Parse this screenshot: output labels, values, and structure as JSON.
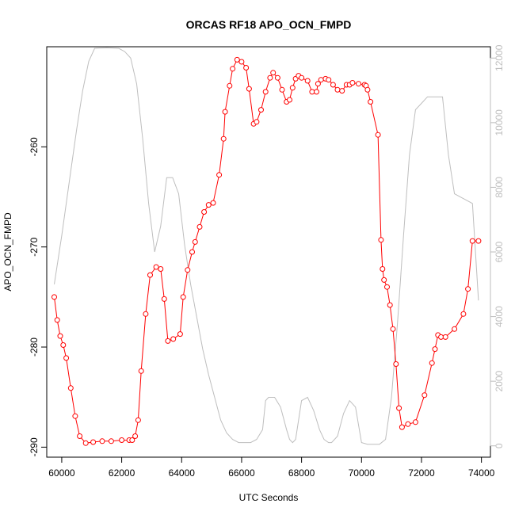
{
  "chart_data": {
    "type": "line",
    "title": "ORCAS RF18 APO_OCN_FMPD",
    "xlabel": "UTC Seconds",
    "ylabel": "APO_OCN_FMPD",
    "xlim": [
      59500,
      74300
    ],
    "ylim": [
      -291,
      -250
    ],
    "y2lim": [
      -350,
      12350
    ],
    "x_ticks": [
      60000,
      62000,
      64000,
      66000,
      68000,
      70000,
      72000,
      74000
    ],
    "x_tick_labels": [
      "60000",
      "62000",
      "64000",
      "66000",
      "68000",
      "70000",
      "72000",
      "74000"
    ],
    "y_ticks": [
      -290,
      -280,
      -270,
      -260
    ],
    "y_tick_labels": [
      "-290",
      "-280",
      "-270",
      "-260"
    ],
    "y2_ticks": [
      0,
      2000,
      4000,
      6000,
      8000,
      10000,
      12000
    ],
    "y2_tick_labels": [
      "0",
      "2000",
      "4000",
      "6000",
      "8000",
      "10000",
      "12000"
    ],
    "grid": false,
    "colors": {
      "primary": "#ff0000",
      "secondary": "#bebebe",
      "axes": "#000000"
    },
    "series": [
      {
        "axis": "left",
        "style": "line-with-open-circles",
        "color": "#ff0000",
        "x": [
          59750,
          59850,
          59950,
          60050,
          60150,
          60300,
          60450,
          60600,
          60800,
          61050,
          61350,
          61650,
          62000,
          62250,
          62350,
          62450,
          62550,
          62650,
          62800,
          62950,
          63150,
          63300,
          63420,
          63540,
          63720,
          63950,
          64050,
          64200,
          64350,
          64450,
          64600,
          64750,
          64900,
          65050,
          65250,
          65400,
          65450,
          65600,
          65700,
          65850,
          66000,
          66150,
          66250,
          66400,
          66500,
          66650,
          66800,
          66950,
          67050,
          67200,
          67350,
          67500,
          67600,
          67700,
          67800,
          67900,
          68000,
          68200,
          68350,
          68500,
          68550,
          68650,
          68800,
          68900,
          69050,
          69200,
          69350,
          69500,
          69600,
          69700,
          69900,
          70100,
          70150,
          70200,
          70300,
          70550,
          70650,
          70700,
          70750,
          70850,
          70950,
          71050,
          71150,
          71250,
          71350,
          71550,
          71800,
          72100,
          72350,
          72450,
          72550,
          72650,
          72800,
          73100,
          73400,
          73550,
          73700,
          73900
        ],
        "y": [
          -275,
          -277.3,
          -278.9,
          -279.8,
          -281.1,
          -284.1,
          -286.9,
          -288.9,
          -289.6,
          -289.5,
          -289.4,
          -289.4,
          -289.3,
          -289.3,
          -289.3,
          -288.9,
          -287.3,
          -282.4,
          -276.7,
          -272.8,
          -272,
          -272.2,
          -275.2,
          -279.4,
          -279.2,
          -278.7,
          -275,
          -272.3,
          -270.5,
          -269.5,
          -268,
          -266.5,
          -265.8,
          -265.6,
          -262.8,
          -259.2,
          -256.5,
          -253.9,
          -252.2,
          -251.3,
          -251.5,
          -252.1,
          -254.2,
          -257.7,
          -257.5,
          -256.3,
          -254.5,
          -253.1,
          -252.6,
          -253.1,
          -254.3,
          -255.5,
          -255.3,
          -254.1,
          -253.2,
          -252.9,
          -253.1,
          -253.4,
          -254.5,
          -254.5,
          -253.7,
          -253.3,
          -253.2,
          -253.3,
          -253.8,
          -254.3,
          -254.4,
          -253.8,
          -253.8,
          -253.6,
          -253.7,
          -253.8,
          -253.9,
          -254.3,
          -255.5,
          -258.8,
          -269.3,
          -272.2,
          -273.3,
          -274,
          -275.8,
          -278.2,
          -281.7,
          -286.1,
          -288,
          -287.7,
          -287.5,
          -284.8,
          -281.6,
          -280.2,
          -278.8,
          -279,
          -279,
          -278.2,
          -276.7,
          -274.2,
          -269.4,
          -269.4
        ]
      },
      {
        "axis": "right",
        "style": "line",
        "color": "#bebebe",
        "x": [
          59750,
          60000,
          60300,
          60500,
          60700,
          60900,
          61100,
          61500,
          61900,
          62100,
          62300,
          62500,
          62700,
          62900,
          63100,
          63300,
          63500,
          63700,
          63900,
          64100,
          64300,
          64500,
          64700,
          64900,
          65100,
          65300,
          65500,
          65700,
          65900,
          66100,
          66300,
          66500,
          66700,
          66800,
          66900,
          67100,
          67300,
          67500,
          67600,
          67700,
          67800,
          68000,
          68200,
          68400,
          68600,
          68750,
          68900,
          69000,
          69200,
          69400,
          69600,
          69800,
          70000,
          70200,
          70400,
          70600,
          70800,
          71000,
          71200,
          71400,
          71600,
          71800,
          72000,
          72200,
          72300,
          72500,
          72700,
          72900,
          73100,
          73300,
          73500,
          73700,
          73900
        ],
        "y": [
          5000,
          6500,
          8500,
          9800,
          11000,
          11900,
          12300,
          12320,
          12300,
          12200,
          12000,
          11200,
          9500,
          7500,
          6000,
          6800,
          8300,
          8300,
          7800,
          6200,
          5000,
          4000,
          3000,
          2200,
          1500,
          800,
          400,
          200,
          100,
          100,
          100,
          200,
          500,
          1400,
          1500,
          1500,
          1200,
          500,
          200,
          100,
          200,
          1400,
          1500,
          1100,
          500,
          200,
          100,
          100,
          300,
          1000,
          1400,
          1200,
          100,
          50,
          50,
          50,
          200,
          1500,
          3800,
          6500,
          9000,
          10400,
          10600,
          10800,
          10800,
          10800,
          10800,
          9000,
          7800,
          7700,
          7600,
          7500,
          4500
        ]
      }
    ]
  }
}
